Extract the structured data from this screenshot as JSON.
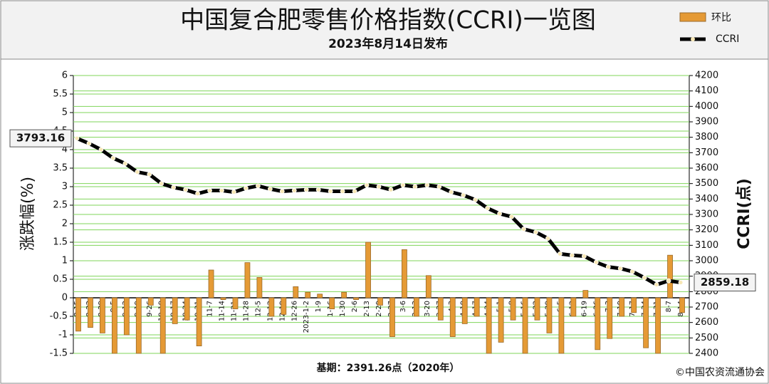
{
  "chart_data": {
    "type": "combo",
    "title": "中国复合肥零售价格指数(CCRI)一览图",
    "subtitle": "2023年8月14日发布",
    "ylabel": "涨跌幅(%)",
    "y2label": "CCRI(点)",
    "base_note": "基期：2391.26点（2020年）",
    "source": "©中国农资流通协会",
    "categories": [
      "8-15",
      "8-22",
      "8-29",
      "9-5",
      "9-12",
      "9-19",
      "9-26",
      "10-10",
      "10-17",
      "10-24",
      "10-31",
      "11-7",
      "11-14",
      "11-21",
      "11-28",
      "12-5",
      "12-12",
      "12-19",
      "12-26",
      "2023-1-2",
      "1-9",
      "1-16",
      "1-30",
      "2-6",
      "2-13",
      "2-20",
      "2-27",
      "3-6",
      "3-13",
      "3-20",
      "3-27",
      "4-3",
      "4-10",
      "4-17",
      "4-24",
      "5-1",
      "5-8",
      "5-16",
      "5-22",
      "5-29",
      "6-5",
      "6-12",
      "6-19",
      "6-26",
      "7-3",
      "7-10",
      "7-17",
      "7-24",
      "7-31",
      "8-7",
      "8-14"
    ],
    "series": [
      {
        "name": "环比",
        "type": "bar",
        "color": "#e59a35",
        "values": [
          -0.9,
          -0.8,
          -0.95,
          -1.5,
          -1.0,
          -1.5,
          -0.2,
          -1.5,
          -0.7,
          -0.6,
          -1.3,
          0.75,
          -0.05,
          -0.3,
          0.95,
          0.55,
          -0.5,
          -0.45,
          0.3,
          0.15,
          0.1,
          -0.3,
          0.15,
          -0.05,
          1.5,
          -0.2,
          -1.05,
          1.3,
          -0.5,
          0.6,
          -0.6,
          -1.05,
          -0.7,
          -0.5,
          -1.5,
          -1.2,
          -0.6,
          -1.5,
          -0.6,
          -0.95,
          -1.5,
          -0.5,
          0.2,
          -1.4,
          -1.1,
          -0.5,
          -0.4,
          -1.35,
          -1.5,
          1.15,
          -0.4
        ]
      },
      {
        "name": "CCRI",
        "type": "line",
        "axis": "y2",
        "color": "#000000",
        "values": [
          3793.16,
          3760,
          3720,
          3665,
          3630,
          3575,
          3560,
          3500,
          3475,
          3460,
          3435,
          3455,
          3455,
          3445,
          3470,
          3485,
          3465,
          3450,
          3455,
          3460,
          3460,
          3450,
          3450,
          3450,
          3490,
          3480,
          3460,
          3490,
          3480,
          3490,
          3480,
          3445,
          3425,
          3395,
          3340,
          3305,
          3285,
          3205,
          3185,
          3145,
          3045,
          3035,
          3030,
          2990,
          2960,
          2950,
          2930,
          2890,
          2845,
          2870,
          2859.18
        ]
      }
    ],
    "ylim": [
      -1.5,
      6
    ],
    "yticks": [
      -1.5,
      -1,
      -0.5,
      0,
      0.5,
      1,
      1.5,
      2,
      2.5,
      3,
      3.5,
      4,
      4.5,
      5,
      5.5,
      6
    ],
    "y2lim": [
      2400,
      4200
    ],
    "y2ticks": [
      2400,
      2500,
      2600,
      2700,
      2800,
      2900,
      3000,
      3100,
      3200,
      3300,
      3400,
      3500,
      3600,
      3700,
      3800,
      3900,
      4000,
      4100,
      4200
    ],
    "grid": true,
    "grid_color": "#7fd45a",
    "legend": "top-right"
  }
}
